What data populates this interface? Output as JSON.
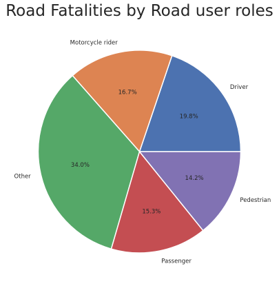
{
  "chart_data": {
    "type": "pie",
    "title": "Road Fatalities by Road user roles",
    "categories": [
      "Driver",
      "Motorcycle rider",
      "Other",
      "Passenger",
      "Pedestrian"
    ],
    "values": [
      19.8,
      16.7,
      34.0,
      15.3,
      14.2
    ],
    "value_labels": [
      "19.8%",
      "16.7%",
      "34.0%",
      "15.3%",
      "14.2%"
    ],
    "colors": [
      "#4c72b0",
      "#dd8452",
      "#55a868",
      "#c44e52",
      "#8172b3"
    ],
    "start_angle_deg": 0,
    "direction": "counterclockwise",
    "legend": "none"
  }
}
